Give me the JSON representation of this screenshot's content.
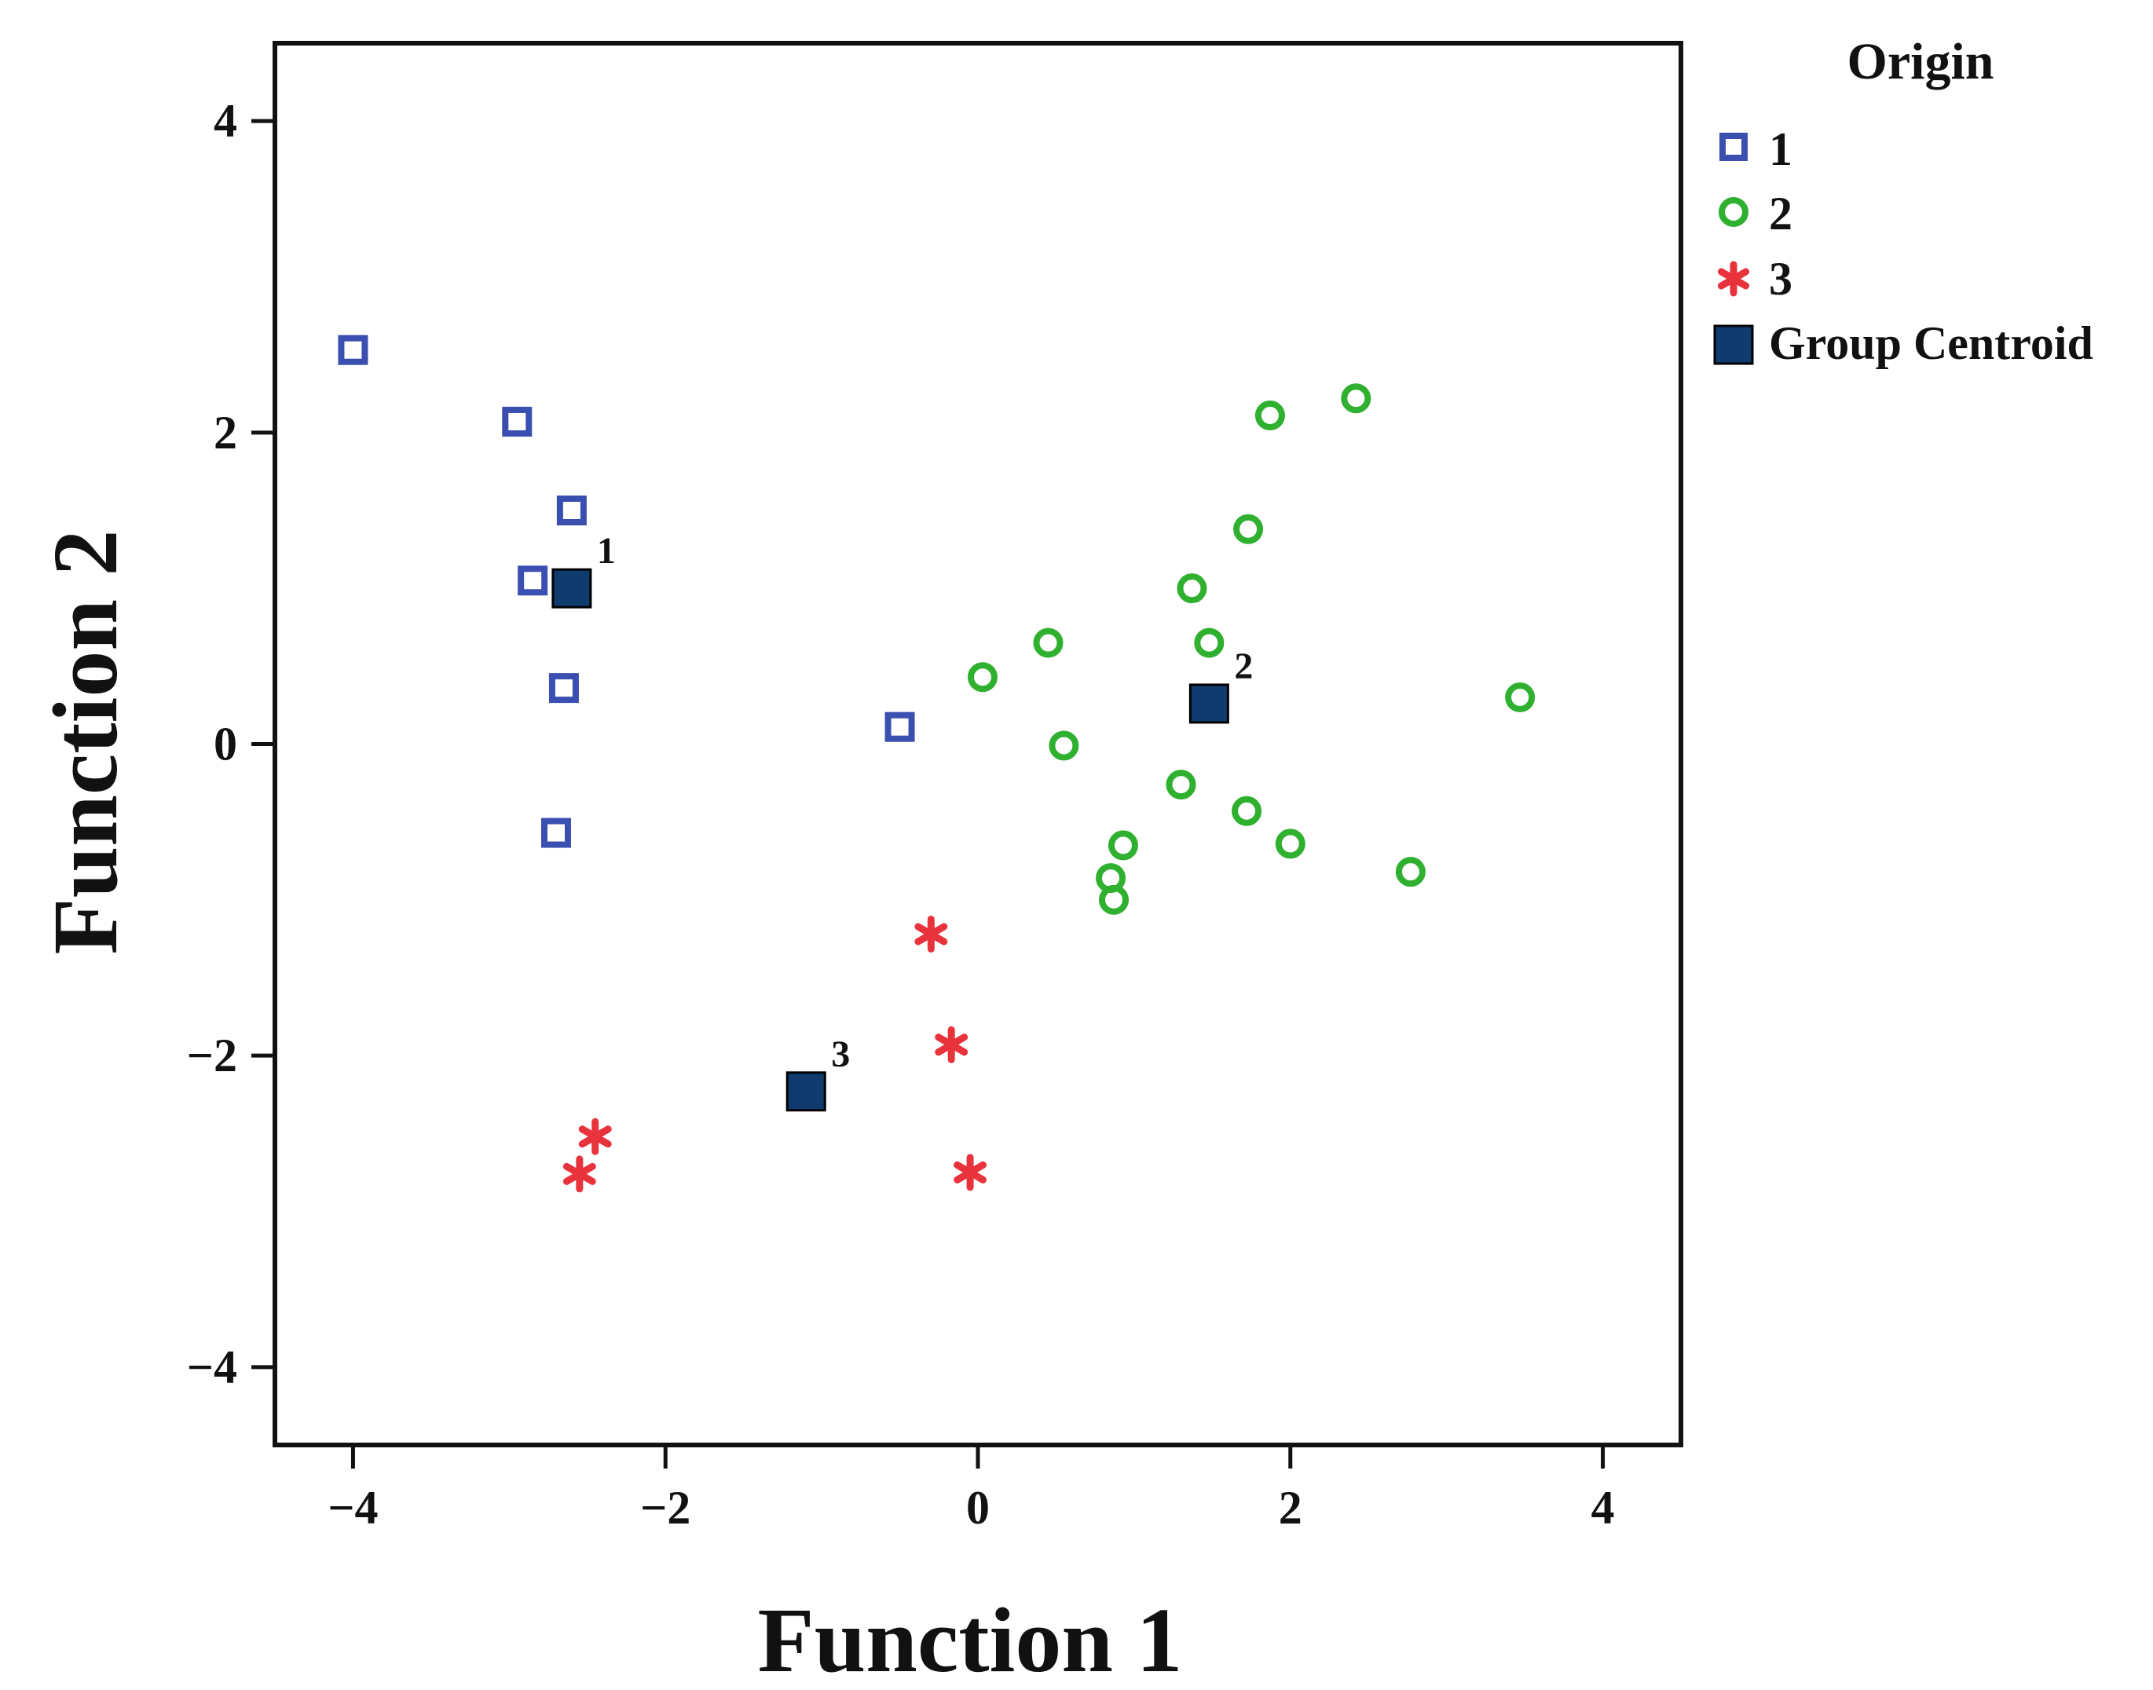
{
  "chart_data": {
    "type": "scatter",
    "title": "",
    "xlabel": "Function 1",
    "ylabel": "Function 2",
    "xlim": [
      -4.5,
      4.5
    ],
    "ylim": [
      -4.5,
      4.5
    ],
    "xticks": [
      -4,
      -2,
      0,
      2,
      4
    ],
    "yticks": [
      -4,
      -2,
      0,
      2,
      4
    ],
    "xtick_labels": [
      "−4",
      "−2",
      "0",
      "2",
      "4"
    ],
    "ytick_labels": [
      "−4",
      "−2",
      "0",
      "2",
      "4"
    ],
    "grid": false,
    "legend": {
      "title": "Origin",
      "position": "right-top",
      "entries": [
        {
          "label": "1",
          "marker": "open-square",
          "color": "#3b4fb0"
        },
        {
          "label": "2",
          "marker": "open-circle",
          "color": "#2fb02f"
        },
        {
          "label": "3",
          "marker": "star",
          "color": "#e8323c"
        },
        {
          "label": "Group Centroid",
          "marker": "filled-square",
          "color": "#0f3b6e"
        }
      ]
    },
    "series": [
      {
        "name": "1",
        "marker": "open-square",
        "color": "#3b4fb0",
        "x": [
          -4.0,
          -2.95,
          -2.6,
          -2.85,
          -2.65,
          -2.7,
          -0.5
        ],
        "y": [
          2.53,
          2.07,
          1.5,
          1.05,
          0.36,
          -0.57,
          0.11
        ]
      },
      {
        "name": "2",
        "marker": "open-circle",
        "color": "#2fb02f",
        "x": [
          1.87,
          2.42,
          1.73,
          1.37,
          0.45,
          1.48,
          0.03,
          3.47,
          0.55,
          1.3,
          1.72,
          2.0,
          2.77,
          0.93,
          0.85,
          0.87
        ],
        "y": [
          2.11,
          2.22,
          1.38,
          1.0,
          0.65,
          0.65,
          0.43,
          0.3,
          -0.01,
          -0.26,
          -0.43,
          -0.64,
          -0.82,
          -0.65,
          -0.86,
          -1.0
        ]
      },
      {
        "name": "3",
        "marker": "star",
        "color": "#e8323c",
        "x": [
          -0.3,
          -0.17,
          -2.45,
          -2.55,
          -0.05
        ],
        "y": [
          -1.22,
          -1.93,
          -2.52,
          -2.76,
          -2.75
        ]
      },
      {
        "name": "Group Centroid",
        "marker": "filled-square",
        "color": "#0f3b6e",
        "x": [
          -2.6,
          1.48,
          -1.1
        ],
        "y": [
          1.0,
          0.26,
          -2.23
        ],
        "labels": [
          "1",
          "2",
          "3"
        ]
      }
    ]
  }
}
